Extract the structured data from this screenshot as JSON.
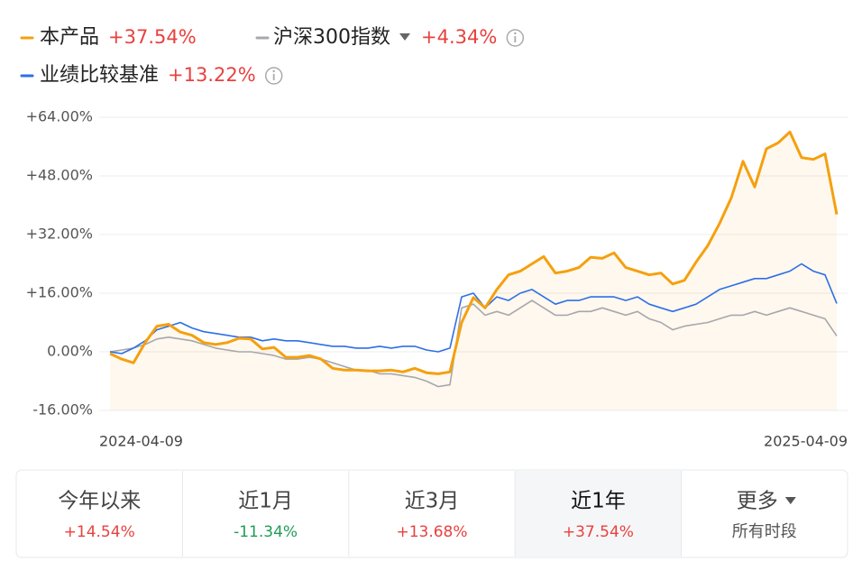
{
  "chart_data": {
    "type": "line",
    "categories": [
      "2024-04-09",
      null,
      null,
      null,
      null,
      null,
      null,
      null,
      null,
      null,
      null,
      null,
      null,
      null,
      null,
      null,
      null,
      null,
      null,
      null,
      null,
      null,
      null,
      null,
      null,
      null,
      null,
      null,
      null,
      null,
      null,
      null,
      null,
      null,
      null,
      null,
      null,
      null,
      null,
      null,
      null,
      null,
      null,
      null,
      null,
      null,
      null,
      null,
      null,
      null,
      null,
      null,
      null,
      null,
      null,
      null,
      null,
      null,
      null,
      null,
      null,
      null,
      "2025-04-09"
    ],
    "series": [
      {
        "name": "本产品",
        "return": "+37.54%",
        "color": "#f5a00f",
        "area": true,
        "values": [
          -0.5,
          -2,
          -3,
          2.5,
          7,
          7.5,
          5.4,
          4.5,
          2.5,
          2,
          2.5,
          3.7,
          3.5,
          0.8,
          1.2,
          -1.5,
          -1.5,
          -1,
          -2,
          -4.5,
          -5,
          -5,
          -5.2,
          -5.2,
          -5,
          -5.5,
          -4.5,
          -5.7,
          -6,
          -5.5,
          8,
          14.8,
          12,
          17,
          21,
          22,
          24,
          26,
          21.5,
          22,
          23,
          25.8,
          25.5,
          27,
          23,
          22,
          21,
          21.5,
          18.5,
          19.5,
          24.5,
          29,
          35,
          42,
          52,
          45,
          55.4,
          57,
          60,
          53,
          52.5,
          54,
          37.5
        ]
      },
      {
        "name": "沪深300指数",
        "return": "+4.34%",
        "color": "#a7a7ad",
        "values": [
          0,
          0.5,
          1,
          2,
          3.5,
          4,
          3.5,
          3,
          2,
          1,
          0.5,
          0,
          0,
          -0.5,
          -1,
          -2,
          -2,
          -1.5,
          -2,
          -3,
          -4,
          -5,
          -5,
          -6,
          -6,
          -6.5,
          -7,
          -8,
          -9.5,
          -9,
          12,
          13,
          10,
          11,
          10,
          12,
          14,
          12,
          10,
          10,
          11,
          11,
          12,
          11,
          10,
          11,
          9,
          8,
          6,
          7,
          7.5,
          8,
          9,
          10,
          10,
          11,
          10,
          11,
          12,
          11,
          10,
          9,
          4.34
        ]
      },
      {
        "name": "业绩比较基准",
        "return": "+13.22%",
        "color": "#2e6fe6",
        "values": [
          0,
          -0.5,
          1,
          3,
          6,
          7,
          8,
          6.5,
          5.5,
          5,
          4.5,
          4,
          4,
          3,
          3.5,
          3,
          3,
          2.5,
          2,
          1.5,
          1.5,
          1,
          1,
          1.5,
          1,
          1.5,
          1.5,
          0.5,
          0,
          1,
          15,
          16,
          12,
          15,
          14,
          16,
          17,
          15,
          13,
          14,
          14,
          15,
          15,
          15,
          14,
          15,
          13,
          12,
          11,
          12,
          13,
          15,
          17,
          18,
          19,
          20,
          20,
          21,
          22,
          24,
          22,
          21,
          13.2
        ]
      }
    ],
    "ylim": [
      -16,
      64
    ],
    "yticks": [
      {
        "value": 64,
        "label": "+64.00%"
      },
      {
        "value": 48,
        "label": "+48.00%"
      },
      {
        "value": 32,
        "label": "+32.00%"
      },
      {
        "value": 16,
        "label": "+16.00%"
      },
      {
        "value": 0,
        "label": "0.00%"
      },
      {
        "value": -16,
        "label": "-16.00%"
      }
    ],
    "grid": true
  },
  "periods": [
    {
      "label": "今年以来",
      "return": "+14.54%"
    },
    {
      "label": "近1月",
      "return": "-11.34%"
    },
    {
      "label": "近3月",
      "return": "+13.68%"
    },
    {
      "label": "近1年",
      "return": "+37.54%"
    },
    {
      "label": "更多",
      "sub": "所有时段"
    }
  ],
  "active_period": 3
}
